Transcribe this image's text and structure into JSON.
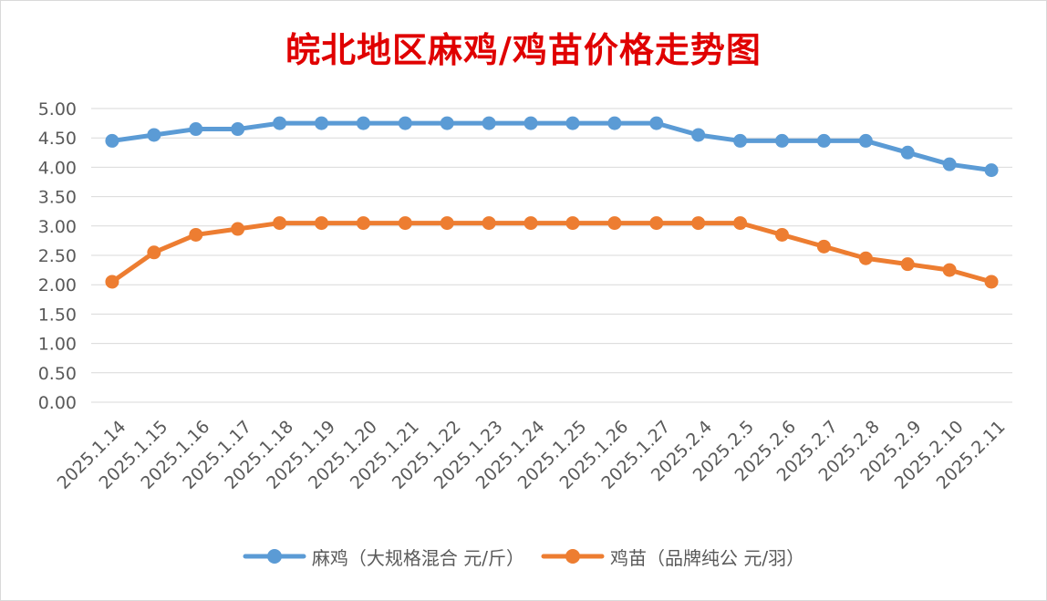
{
  "chart_data": {
    "type": "line",
    "title": "皖北地区麻鸡/鸡苗价格走势图",
    "categories": [
      "2025.1.14",
      "2025.1.15",
      "2025.1.16",
      "2025.1.17",
      "2025.1.18",
      "2025.1.19",
      "2025.1.20",
      "2025.1.21",
      "2025.1.22",
      "2025.1.23",
      "2025.1.24",
      "2025.1.25",
      "2025.1.26",
      "2025.1.27",
      "2025.2.4",
      "2025.2.5",
      "2025.2.6",
      "2025.2.7",
      "2025.2.8",
      "2025.2.9",
      "2025.2.10",
      "2025.2.11"
    ],
    "series": [
      {
        "name": "麻鸡（大规格混合 元/斤）",
        "color": "#5b9bd5",
        "values": [
          4.45,
          4.55,
          4.65,
          4.65,
          4.75,
          4.75,
          4.75,
          4.75,
          4.75,
          4.75,
          4.75,
          4.75,
          4.75,
          4.75,
          4.55,
          4.45,
          4.45,
          4.45,
          4.45,
          4.25,
          4.05,
          3.95
        ]
      },
      {
        "name": "鸡苗（品牌纯公 元/羽）",
        "color": "#ed7d31",
        "values": [
          2.05,
          2.55,
          2.85,
          2.95,
          3.05,
          3.05,
          3.05,
          3.05,
          3.05,
          3.05,
          3.05,
          3.05,
          3.05,
          3.05,
          3.05,
          3.05,
          2.85,
          2.65,
          2.45,
          2.35,
          2.25,
          2.05
        ]
      }
    ],
    "ylim": [
      0,
      5
    ],
    "ystep": 0.5,
    "y_tick_labels": [
      "0.00",
      "0.50",
      "1.00",
      "1.50",
      "2.00",
      "2.50",
      "3.00",
      "3.50",
      "4.00",
      "4.50",
      "5.00"
    ],
    "xlabel": "",
    "ylabel": "",
    "grid": true,
    "legend_position": "bottom"
  }
}
